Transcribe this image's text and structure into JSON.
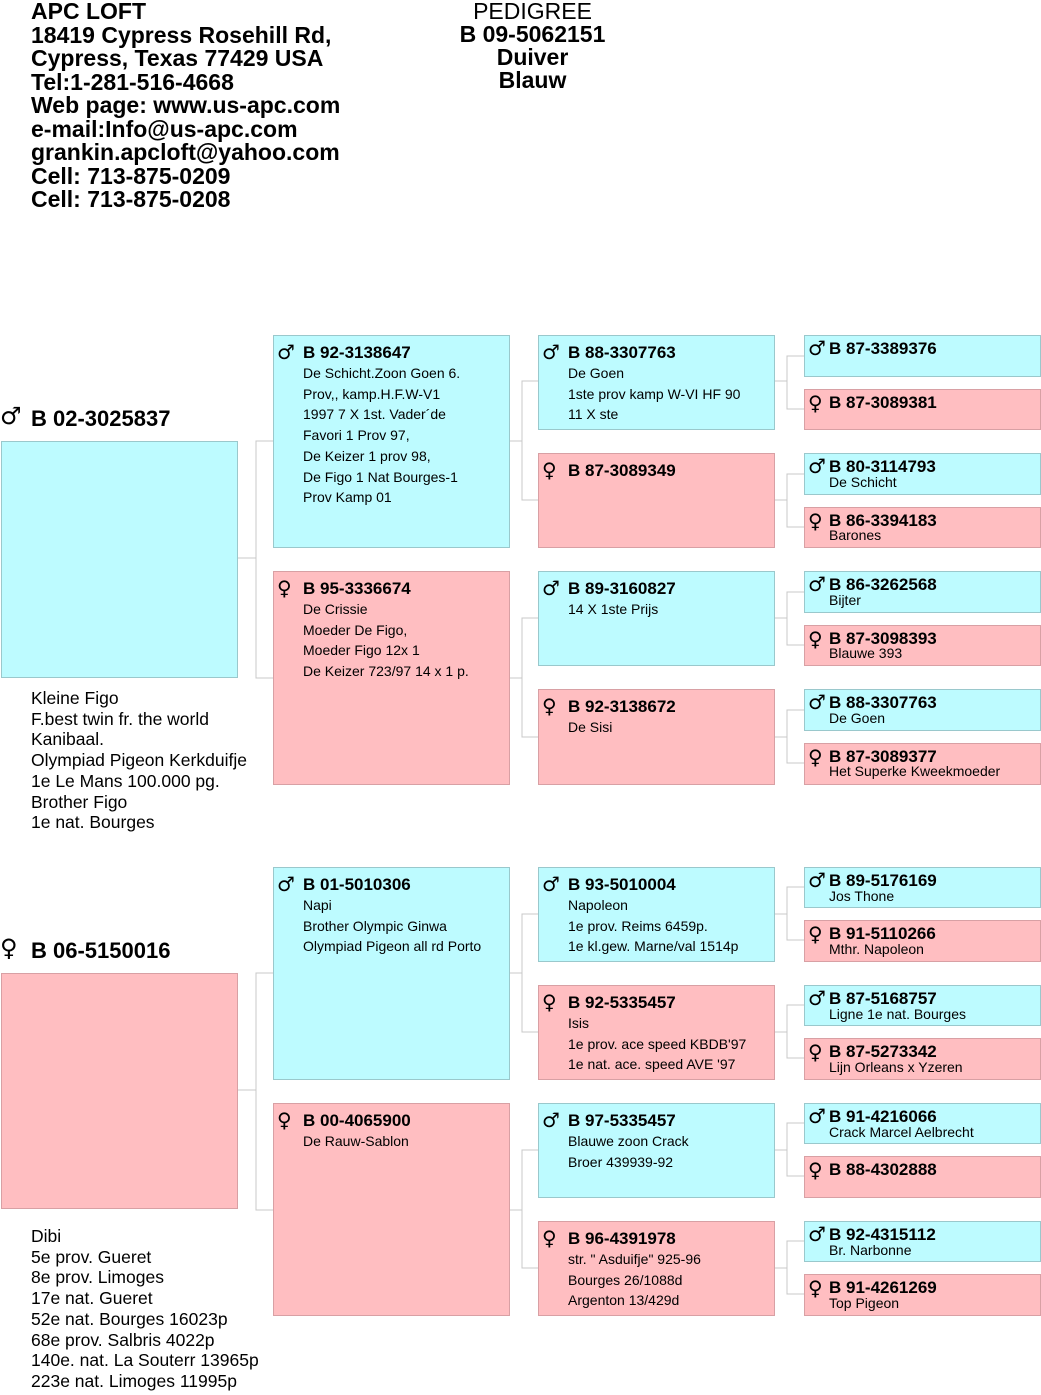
{
  "header": {
    "lines": [
      "APC LOFT",
      "18419 Cypress Rosehill Rd,",
      "Cypress, Texas 77429 USA",
      "Tel:1-281-516-4668",
      "Web page: www.us-apc.com",
      "e-mail:Info@us-apc.com",
      "grankin.apcloft@yahoo.com",
      "Cell: 713-875-0209",
      "Cell: 713-875-0208"
    ]
  },
  "pedigree": {
    "title": "PEDIGREE",
    "ring": "B 09-5062151",
    "name": "Duiver",
    "color": "Blauw"
  },
  "symbols": {
    "male": "♂",
    "female": "♀"
  },
  "sire": {
    "ring": "B 02-3025837",
    "notes": [
      "Kleine Figo",
      "F.best twin fr. the world",
      "Kanibaal.",
      "Olympiad Pigeon Kerkduifje",
      "1e Le Mans 100.000 pg.",
      "Brother Figo",
      "1e nat. Bourges"
    ]
  },
  "dam": {
    "ring": "B 06-5150016",
    "notes": [
      "Dibi",
      "5e prov. Gueret",
      "8e prov. Limoges",
      "17e nat. Gueret",
      "52e nat. Bourges 16023p",
      "68e prov. Salbris 4022p",
      "140e. nat. La Souterr 13965p",
      "223e nat. Limoges 11995p"
    ]
  },
  "gen2": [
    {
      "ring": "B 92-3138647",
      "lines": [
        "De Schicht.Zoon Goen 6.",
        "Prov,, kamp.H.F.W-V1",
        "1997 7 X 1st. Vader´de",
        "Favori 1 Prov 97,",
        "De Keizer 1 prov 98,",
        "De Figo 1 Nat Bourges-1",
        "Prov Kamp 01"
      ]
    },
    {
      "ring": "B 95-3336674",
      "lines": [
        "De Crissie",
        "Moeder De Figo,",
        "Moeder Figo 12x 1",
        "De Keizer 723/97 14 x 1 p."
      ]
    },
    {
      "ring": "B 01-5010306",
      "lines": [
        "Napi",
        "Brother Olympic Ginwa",
        "Olympiad Pigeon all rd Porto"
      ]
    },
    {
      "ring": "B 00-4065900",
      "lines": [
        "De Rauw-Sablon"
      ]
    }
  ],
  "gen3": [
    {
      "ring": "B 88-3307763",
      "lines": [
        "De Goen",
        "1ste prov kamp W-VI HF 90",
        "11 X ste"
      ]
    },
    {
      "ring": "B 87-3089349",
      "lines": []
    },
    {
      "ring": "B 89-3160827",
      "lines": [
        "14 X 1ste Prijs"
      ]
    },
    {
      "ring": "B 92-3138672",
      "lines": [
        "De Sisi"
      ]
    },
    {
      "ring": "B 93-5010004",
      "lines": [
        "Napoleon",
        "1e prov. Reims 6459p.",
        "1e kl.gew. Marne/val 1514p"
      ]
    },
    {
      "ring": "B 92-5335457",
      "lines": [
        "Isis",
        "1e prov. ace speed KBDB'97",
        "1e nat. ace. speed AVE '97"
      ]
    },
    {
      "ring": "B 97-5335457",
      "lines": [
        "Blauwe zoon Crack",
        "Broer 439939-92"
      ]
    },
    {
      "ring": "B 96-4391978",
      "lines": [
        "str. \" Asduifje\" 925-96",
        "Bourges 26/1088d",
        "Argenton 13/429d"
      ]
    }
  ],
  "gen4": [
    {
      "ring": "B 87-3389376",
      "note": ""
    },
    {
      "ring": "B 87-3089381",
      "note": ""
    },
    {
      "ring": "B 80-3114793",
      "note": "De Schicht"
    },
    {
      "ring": "B 86-3394183",
      "note": "Barones"
    },
    {
      "ring": "B 86-3262568",
      "note": "Bijter"
    },
    {
      "ring": "B 87-3098393",
      "note": "Blauwe 393"
    },
    {
      "ring": "B 88-3307763",
      "note": "De Goen"
    },
    {
      "ring": "B 87-3089377",
      "note": "Het Superke Kweekmoeder"
    },
    {
      "ring": "B 89-5176169",
      "note": "Jos Thone"
    },
    {
      "ring": "B 91-5110266",
      "note": "Mthr. Napoleon"
    },
    {
      "ring": "B 87-5168757",
      "note": "Ligne 1e nat. Bourges"
    },
    {
      "ring": "B 87-5273342",
      "note": "Lijn Orleans x Yzeren"
    },
    {
      "ring": "B 91-4216066",
      "note": "Crack Marcel Aelbrecht"
    },
    {
      "ring": "B 88-4302888",
      "note": ""
    },
    {
      "ring": "B 92-4315112",
      "note": "Br. Narbonne"
    },
    {
      "ring": "B 91-4261269",
      "note": "Top Pigeon"
    }
  ]
}
